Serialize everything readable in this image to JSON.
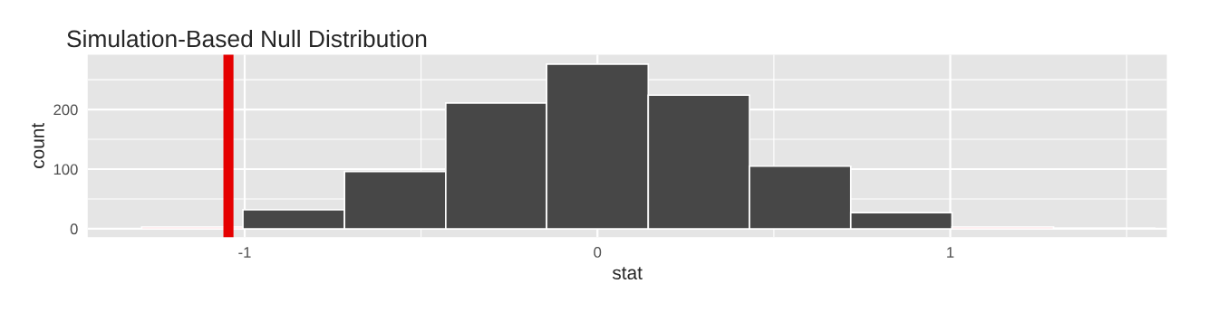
{
  "chart_data": {
    "type": "histogram",
    "title": "Simulation-Based Null Distribution",
    "xlabel": "stat",
    "ylabel": "count",
    "bins": [
      -1.292,
      -1.005,
      -0.717,
      -0.43,
      -0.144,
      0.144,
      0.431,
      0.718,
      1.005,
      1.293,
      1.58
    ],
    "values": [
      3,
      32,
      96,
      211,
      276,
      224,
      105,
      27,
      3,
      1
    ],
    "colors": [
      "#ffc0cb",
      "#474747",
      "#474747",
      "#474747",
      "#474747",
      "#474747",
      "#474747",
      "#474747",
      "#ffc0cb",
      "#ffc0cb"
    ],
    "xlim": [
      -1.445,
      1.614
    ],
    "ylim": [
      -14,
      292
    ],
    "xticks": [
      -1,
      0,
      1
    ],
    "yticks": [
      0,
      100,
      200
    ],
    "ref_lines": [
      {
        "axis": "x",
        "value": -1.046,
        "label": null,
        "color": "#e50000"
      }
    ],
    "grid": true
  }
}
